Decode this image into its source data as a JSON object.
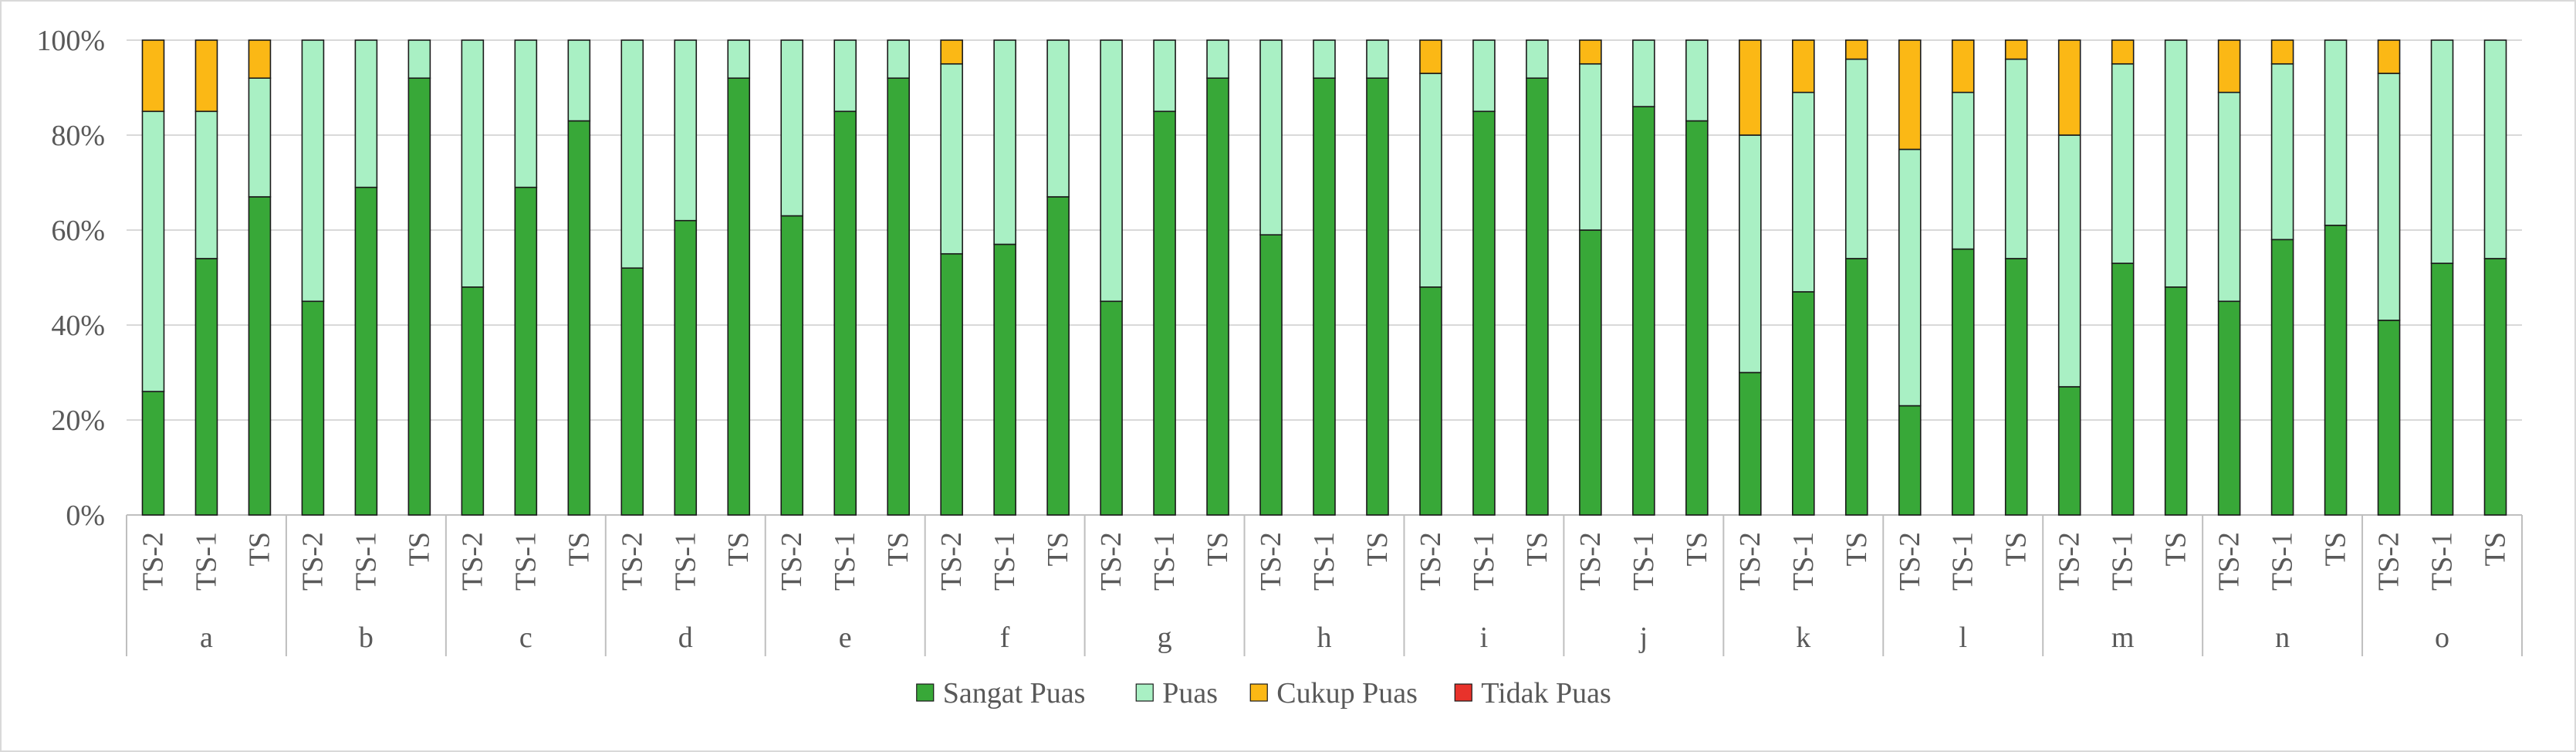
{
  "chart_data": {
    "type": "bar",
    "stacked": true,
    "percent_stacked": true,
    "groups": [
      "a",
      "b",
      "c",
      "d",
      "e",
      "f",
      "g",
      "h",
      "i",
      "j",
      "k",
      "l",
      "m",
      "n",
      "o"
    ],
    "subcategories": [
      "TS-2",
      "TS-1",
      "TS"
    ],
    "ylim": [
      0,
      100
    ],
    "yticks": [
      "0%",
      "20%",
      "40%",
      "60%",
      "80%",
      "100%"
    ],
    "grid": true,
    "legend_position": "bottom",
    "series": [
      {
        "name": "Sangat Puas",
        "color": "#38a838",
        "values": [
          26,
          54,
          67,
          45,
          69,
          92,
          48,
          69,
          83,
          52,
          62,
          92,
          63,
          85,
          92,
          55,
          57,
          67,
          45,
          85,
          92,
          59,
          92,
          92,
          48,
          85,
          92,
          60,
          86,
          83,
          30,
          47,
          54,
          23,
          56,
          54,
          27,
          53,
          48,
          45,
          58,
          61,
          41,
          53,
          54
        ]
      },
      {
        "name": "Puas",
        "color": "#a9f0c4",
        "values": [
          59,
          31,
          25,
          55,
          31,
          8,
          52,
          31,
          17,
          48,
          38,
          8,
          37,
          15,
          8,
          40,
          43,
          33,
          55,
          15,
          8,
          41,
          8,
          8,
          45,
          15,
          8,
          35,
          14,
          17,
          50,
          42,
          42,
          54,
          33,
          42,
          53,
          42,
          52,
          44,
          37,
          39,
          52,
          47,
          46
        ]
      },
      {
        "name": "Cukup Puas",
        "color": "#fbb815",
        "values": [
          15,
          15,
          8,
          0,
          0,
          0,
          0,
          0,
          0,
          0,
          0,
          0,
          0,
          0,
          0,
          5,
          0,
          0,
          0,
          0,
          0,
          0,
          0,
          0,
          7,
          0,
          0,
          5,
          0,
          0,
          20,
          11,
          4,
          23,
          11,
          4,
          20,
          5,
          0,
          11,
          5,
          0,
          7,
          0,
          0
        ]
      },
      {
        "name": "Tidak Puas",
        "color": "#e8322b",
        "values": [
          0,
          0,
          0,
          0,
          0,
          0,
          0,
          0,
          0,
          0,
          0,
          0,
          0,
          0,
          0,
          0,
          0,
          0,
          0,
          0,
          0,
          0,
          0,
          0,
          0,
          0,
          0,
          0,
          0,
          0,
          0,
          0,
          0,
          0,
          0,
          0,
          0,
          0,
          0,
          0,
          0,
          0,
          0,
          0,
          0
        ]
      }
    ]
  }
}
